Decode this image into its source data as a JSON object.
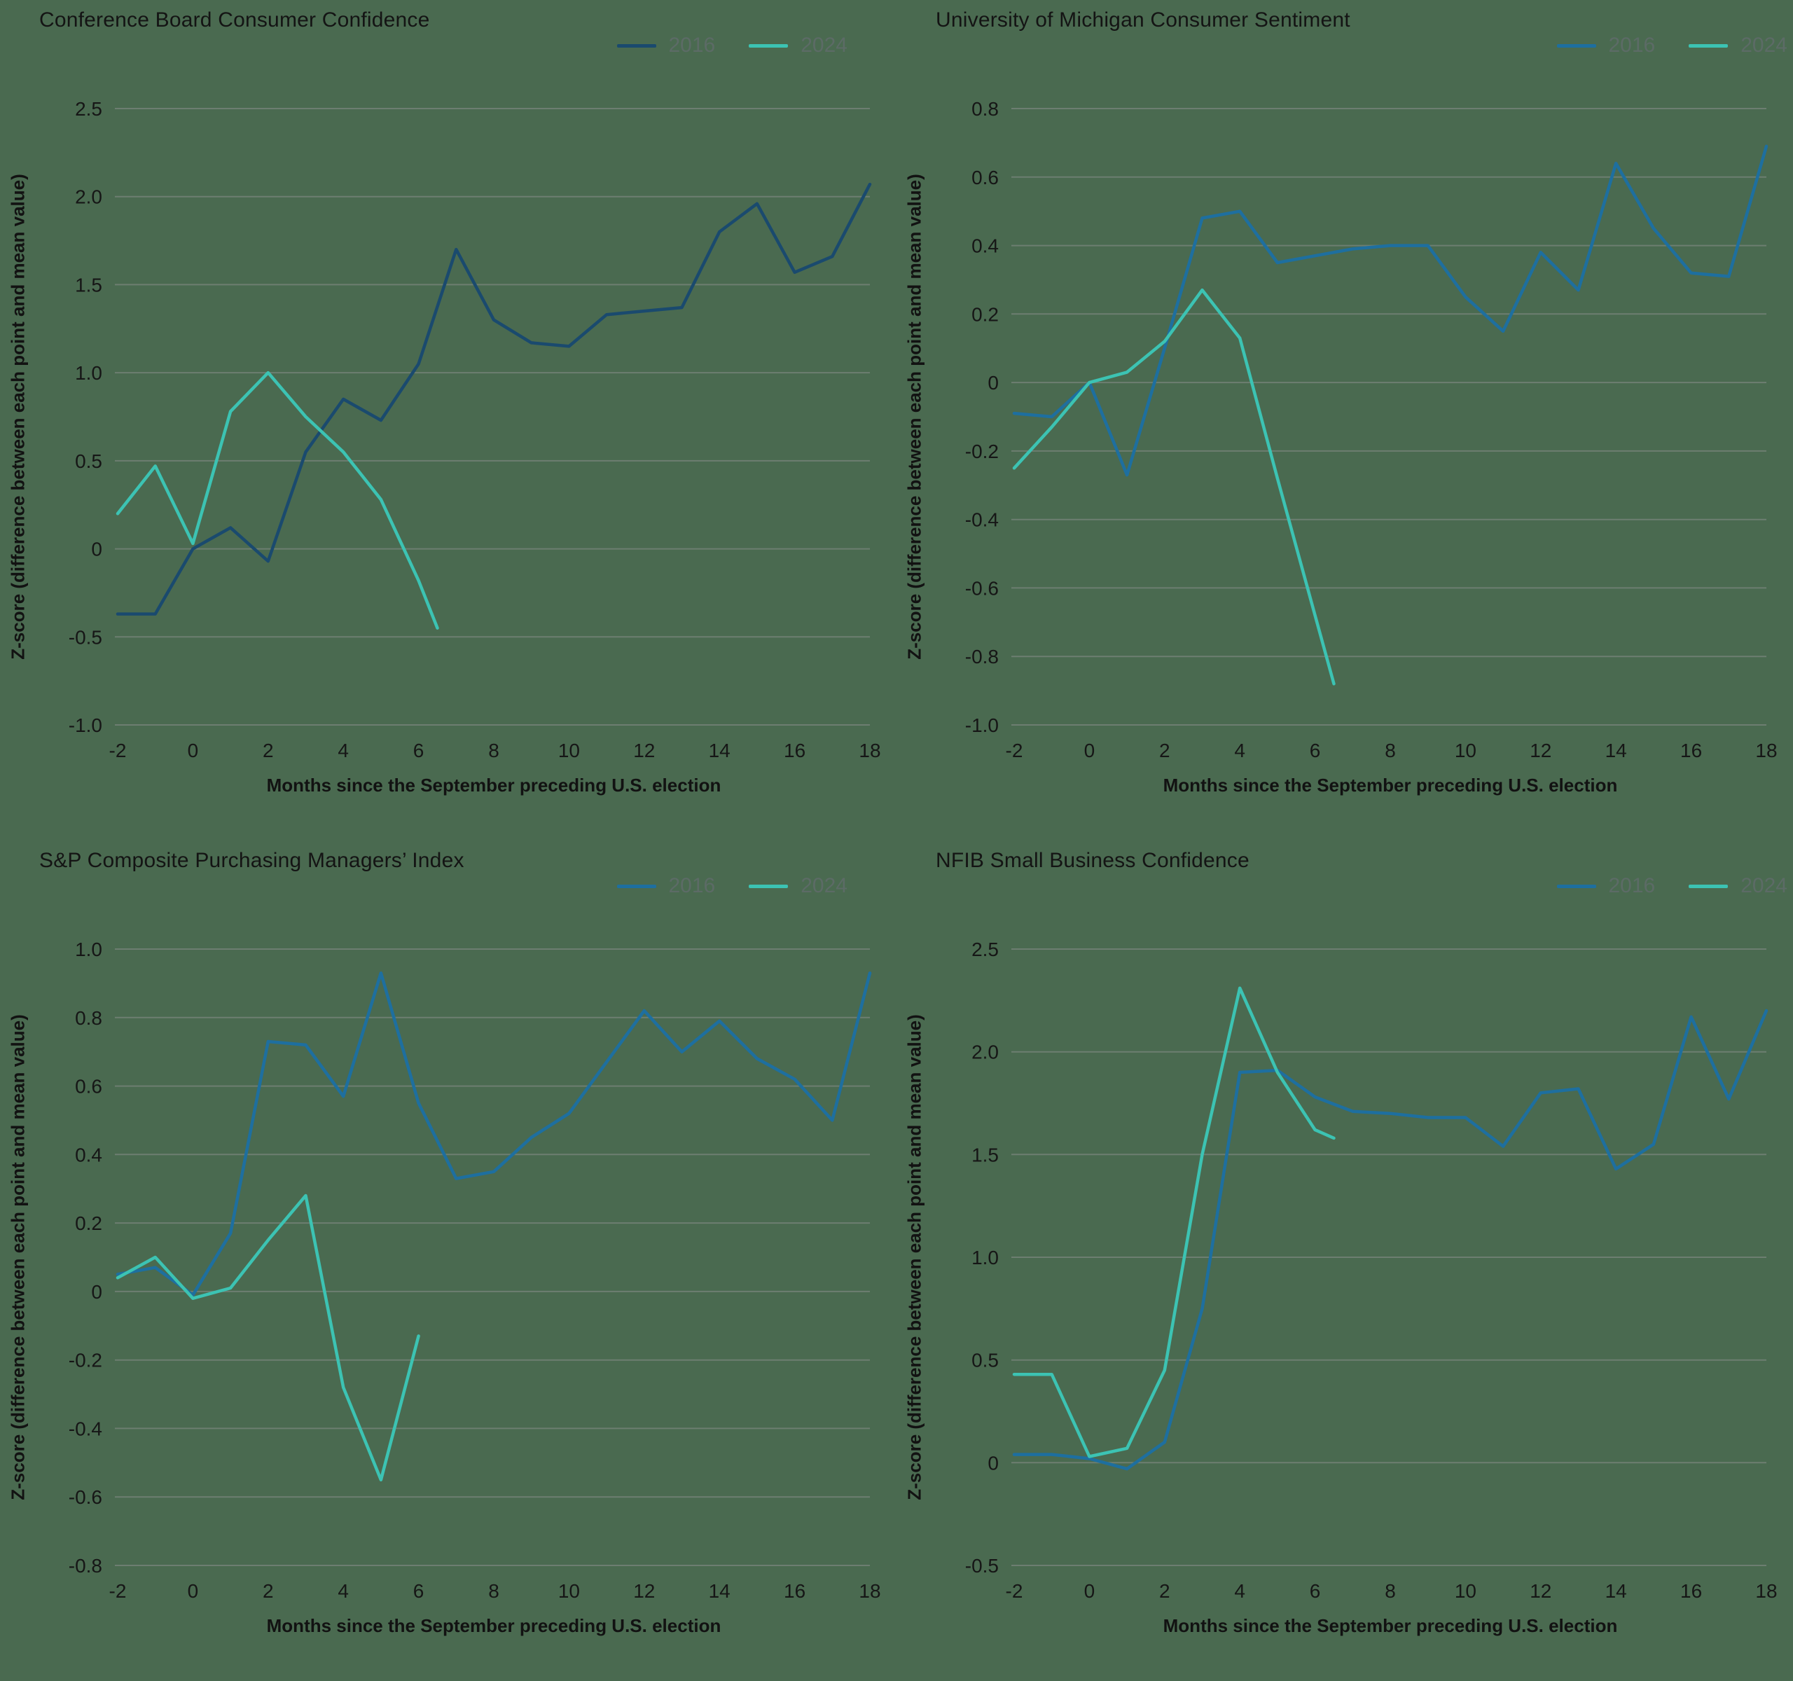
{
  "page": {
    "background_color": "#4a6a50"
  },
  "chart_data": [
    {
      "type": "line",
      "title": "Conference Board Consumer Confidence",
      "xlabel": "Months since the September preceding U.S. election",
      "ylabel": "Z-score (difference between each point and mean value)",
      "legend_position": "top-right",
      "grid": "horizontal",
      "xlim": [
        -2,
        18
      ],
      "xticks": [
        -2,
        0,
        2,
        4,
        6,
        8,
        10,
        12,
        14,
        16,
        18
      ],
      "ylim": [
        -1.0,
        2.5
      ],
      "yticks": [
        2.5,
        2.0,
        1.5,
        1.0,
        0.5,
        0,
        -0.5,
        -1.0
      ],
      "series": [
        {
          "name": "2016",
          "color": "#1a4a6e",
          "x": [
            -2,
            -1,
            0,
            1,
            2,
            3,
            4,
            5,
            6,
            7,
            8,
            9,
            10,
            11,
            12,
            13,
            14,
            15,
            16,
            17,
            18
          ],
          "y": [
            -0.37,
            -0.37,
            0.0,
            0.12,
            -0.07,
            0.55,
            0.85,
            0.73,
            1.05,
            1.7,
            1.3,
            1.17,
            1.15,
            1.33,
            1.35,
            1.37,
            1.8,
            1.96,
            1.57,
            1.66,
            2.07
          ]
        },
        {
          "name": "2024",
          "color": "#3cc3b3",
          "x": [
            -2,
            -1,
            0,
            1,
            2,
            3,
            4,
            5,
            6,
            6.5
          ],
          "y": [
            0.2,
            0.47,
            0.03,
            0.78,
            1.0,
            0.75,
            0.55,
            0.28,
            -0.18,
            -0.45
          ]
        }
      ]
    },
    {
      "type": "line",
      "title": "University of Michigan Consumer Sentiment",
      "xlabel": "Months since the September preceding U.S. election",
      "ylabel": "Z-score (difference between each point and mean value)",
      "legend_position": "top-right",
      "grid": "horizontal",
      "xlim": [
        -2,
        18
      ],
      "xticks": [
        -2,
        0,
        2,
        4,
        6,
        8,
        10,
        12,
        14,
        16,
        18
      ],
      "ylim": [
        -1.0,
        0.8
      ],
      "yticks": [
        0.8,
        0.6,
        0.4,
        0.2,
        0,
        -0.2,
        -0.4,
        -0.6,
        -0.8,
        -1.0
      ],
      "series": [
        {
          "name": "2016",
          "color": "#1e6f9f",
          "x": [
            -2,
            -1,
            0,
            1,
            2,
            3,
            4,
            5,
            6,
            7,
            8,
            9,
            10,
            11,
            12,
            13,
            14,
            15,
            16,
            17,
            18
          ],
          "y": [
            -0.09,
            -0.1,
            0.0,
            -0.27,
            0.1,
            0.48,
            0.5,
            0.35,
            0.37,
            0.39,
            0.4,
            0.4,
            0.25,
            0.15,
            0.38,
            0.27,
            0.64,
            0.45,
            0.32,
            0.31,
            0.69
          ]
        },
        {
          "name": "2024",
          "color": "#3cc3b3",
          "x": [
            -2,
            -1,
            0,
            1,
            2,
            3,
            4,
            5,
            6,
            6.5
          ],
          "y": [
            -0.25,
            -0.13,
            0.0,
            0.03,
            0.12,
            0.27,
            0.13,
            -0.28,
            -0.68,
            -0.88
          ]
        }
      ]
    },
    {
      "type": "line",
      "title": "S&P Composite Purchasing Managers’ Index",
      "xlabel": "Months since the September preceding U.S. election",
      "ylabel": "Z-score (difference between each point and mean value)",
      "legend_position": "top-right",
      "grid": "horizontal",
      "xlim": [
        -2,
        18
      ],
      "xticks": [
        -2,
        0,
        2,
        4,
        6,
        8,
        10,
        12,
        14,
        16,
        18
      ],
      "ylim": [
        -0.8,
        1.0
      ],
      "yticks": [
        1.0,
        0.8,
        0.6,
        0.4,
        0.2,
        0,
        -0.2,
        -0.4,
        -0.6,
        -0.8
      ],
      "series": [
        {
          "name": "2016",
          "color": "#1e6f9f",
          "x": [
            -2,
            -1,
            0,
            1,
            2,
            3,
            4,
            5,
            6,
            7,
            8,
            9,
            10,
            11,
            12,
            13,
            14,
            15,
            16,
            17,
            18
          ],
          "y": [
            0.05,
            0.07,
            -0.01,
            0.17,
            0.73,
            0.72,
            0.57,
            0.93,
            0.55,
            0.33,
            0.35,
            0.45,
            0.52,
            0.67,
            0.82,
            0.7,
            0.79,
            0.68,
            0.62,
            0.5,
            0.93
          ]
        },
        {
          "name": "2024",
          "color": "#3cc3b3",
          "x": [
            -2,
            -1,
            0,
            1,
            2,
            3,
            4,
            5,
            6
          ],
          "y": [
            0.04,
            0.1,
            -0.02,
            0.01,
            0.15,
            0.28,
            -0.28,
            -0.55,
            -0.13
          ]
        }
      ]
    },
    {
      "type": "line",
      "title": "NFIB Small Business Confidence",
      "xlabel": "Months since the September preceding U.S. election",
      "ylabel": "Z-score (difference between each point and mean value)",
      "legend_position": "top-right",
      "grid": "horizontal",
      "xlim": [
        -2,
        18
      ],
      "xticks": [
        -2,
        0,
        2,
        4,
        6,
        8,
        10,
        12,
        14,
        16,
        18
      ],
      "ylim": [
        -0.5,
        2.5
      ],
      "yticks": [
        2.5,
        2.0,
        1.5,
        1.0,
        0.5,
        0,
        -0.5
      ],
      "series": [
        {
          "name": "2016",
          "color": "#1e6f9f",
          "x": [
            -2,
            -1,
            0,
            1,
            2,
            3,
            4,
            5,
            6,
            7,
            8,
            9,
            10,
            11,
            12,
            13,
            14,
            15,
            16,
            17,
            18
          ],
          "y": [
            0.04,
            0.04,
            0.02,
            -0.03,
            0.1,
            0.75,
            1.9,
            1.91,
            1.78,
            1.71,
            1.7,
            1.68,
            1.68,
            1.54,
            1.8,
            1.82,
            1.43,
            1.55,
            2.17,
            1.77,
            2.2
          ]
        },
        {
          "name": "2024",
          "color": "#3cc3b3",
          "x": [
            -2,
            -1,
            0,
            1,
            2,
            3,
            4,
            5,
            6,
            6.5
          ],
          "y": [
            0.43,
            0.43,
            0.03,
            0.07,
            0.45,
            1.5,
            2.31,
            1.9,
            1.62,
            1.58
          ]
        }
      ]
    }
  ]
}
